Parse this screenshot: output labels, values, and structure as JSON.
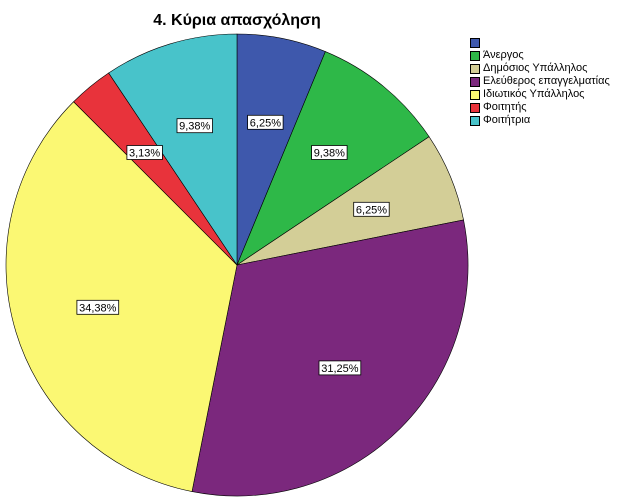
{
  "chart_data": {
    "type": "pie",
    "title": "4. Κύρια απασχόληση",
    "legend_position": "top-right",
    "start_angle_deg": 0,
    "direction": "clockwise",
    "slices": [
      {
        "name": "",
        "value": 6.25,
        "label": "6,25%",
        "color": "#3e58ac"
      },
      {
        "name": "Άνεργος",
        "value": 9.38,
        "label": "9,38%",
        "color": "#2eb848"
      },
      {
        "name": "Δημόσιος Υπάλληλος",
        "value": 6.25,
        "label": "6,25%",
        "color": "#d3ce97"
      },
      {
        "name": "Ελεύθερος επαγγελματίας",
        "value": 31.25,
        "label": "31,25%",
        "color": "#7b287d"
      },
      {
        "name": "Ιδιωτικός Υπάλληλος",
        "value": 34.38,
        "label": "34,38%",
        "color": "#fbf873"
      },
      {
        "name": "Φοιτητής",
        "value": 3.13,
        "label": "3,13%",
        "color": "#e8333b"
      },
      {
        "name": "Φοιτήτρια",
        "value": 9.38,
        "label": "9,38%",
        "color": "#48c3ca"
      }
    ]
  }
}
